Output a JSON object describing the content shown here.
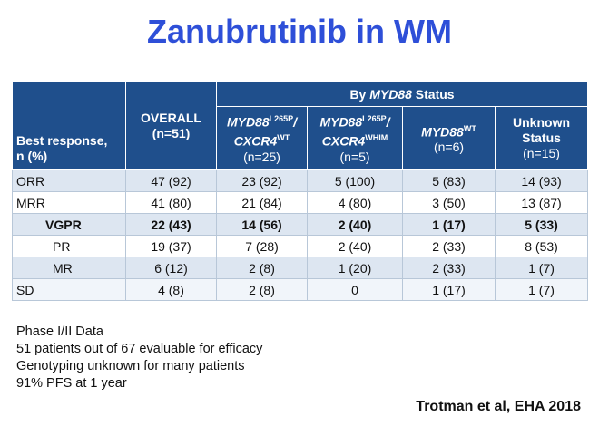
{
  "title": "Zanubrutinib in WM",
  "table": {
    "status_header_prefix": "By ",
    "status_header_gene": "MYD88",
    "status_header_suffix": " Status",
    "row_header_line1": "Best response,",
    "row_header_line2": "n (%)",
    "overall_label": "OVERALL",
    "overall_n": "(n=51)",
    "col1_gene": "MYD88",
    "col1_sup": "L265P",
    "col1_gene2": "CXCR4",
    "col1_sup2": "WT",
    "col1_n": "(n=25)",
    "col2_gene": "MYD88",
    "col2_sup": "L265P",
    "col2_gene2": "CXCR4",
    "col2_sup2": "WHIM",
    "col2_n": "(n=5)",
    "col3_gene": "MYD88",
    "col3_sup": "WT",
    "col3_n": "(n=6)",
    "col4_line1": "Unknown",
    "col4_line2": "Status",
    "col4_n": "(n=15)",
    "rows": [
      {
        "label": "ORR",
        "overall": "47 (92)",
        "c1": "23 (92)",
        "c2": "5 (100)",
        "c3": "5 (83)",
        "c4": "14 (93)"
      },
      {
        "label": "MRR",
        "overall": "41 (80)",
        "c1": "21 (84)",
        "c2": "4 (80)",
        "c3": "3 (50)",
        "c4": "13 (87)"
      },
      {
        "label": "VGPR",
        "overall": "22 (43)",
        "c1": "14 (56)",
        "c2": "2 (40)",
        "c3": "1 (17)",
        "c4": "5 (33)"
      },
      {
        "label": "PR",
        "overall": "19 (37)",
        "c1": "7 (28)",
        "c2": "2 (40)",
        "c3": "2 (33)",
        "c4": "8 (53)"
      },
      {
        "label": "MR",
        "overall": "6 (12)",
        "c1": "2 (8)",
        "c2": "1 (20)",
        "c3": "2 (33)",
        "c4": "1 (7)"
      },
      {
        "label": "SD",
        "overall": "4 (8)",
        "c1": "2 (8)",
        "c2": "0",
        "c3": "1 (17)",
        "c4": "1 (7)"
      }
    ]
  },
  "notes": [
    "Phase I/II Data",
    "51 patients out of 67 evaluable for efficacy",
    "Genotyping unknown for many patients",
    "91% PFS at 1 year"
  ],
  "citation": "Trotman et al, EHA 2018",
  "colors": {
    "title": "#2e4fd8",
    "header_bg": "#1f4f8c"
  }
}
